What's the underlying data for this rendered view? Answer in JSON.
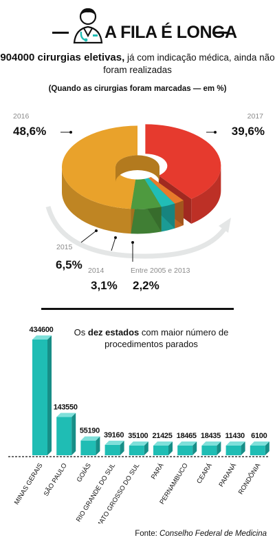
{
  "header": {
    "title": "A FILA É LONGA"
  },
  "lead": {
    "highlight": "904000 cirurgias eletivas,",
    "rest": " já com indicação médica, ainda não foram realizadas"
  },
  "subnote": "(Quando as cirurgias foram marcadas — em %)",
  "colors": {
    "2016": "#E9A22B",
    "2017": "#E63A2E",
    "2015": "#4E9A3F",
    "2014": "#21BDB6",
    "2005_2013": "#E87A2B",
    "bars": "#1FBDB4"
  },
  "chart_data": [
    {
      "type": "pie",
      "slices": [
        {
          "label": "2017",
          "value": 39.6,
          "display": "39,6%"
        },
        {
          "label": "Entre 2005 e 2013",
          "value": 2.2,
          "display": "2,2%"
        },
        {
          "label": "2014",
          "value": 3.1,
          "display": "3,1%"
        },
        {
          "label": "2015",
          "value": 6.5,
          "display": "6,5%"
        },
        {
          "label": "2016",
          "value": 48.6,
          "display": "48,6%"
        }
      ]
    },
    {
      "type": "bar",
      "title": "Os dez estados com maior número de procedimentos parados",
      "categories": [
        "MINAS GERAIS",
        "SÃO PAULO",
        "GOIÁS",
        "RIO GRANDE DO SUL",
        "MATO GROSSO DO SUL",
        "PARÁ",
        "PERNAMBUCO",
        "CEARÁ",
        "PARANÁ",
        "RONDÔNIA"
      ],
      "values": [
        434600,
        143550,
        55190,
        39160,
        35100,
        21425,
        18465,
        18435,
        11430,
        6100
      ],
      "value_labels": [
        "434600",
        "143550",
        "55190",
        "39160",
        "35100",
        "21425",
        "18465",
        "18435",
        "11430",
        "6100"
      ]
    }
  ],
  "states_title": {
    "pre": "Os ",
    "bold": "dez estados",
    "post": " com maior número de procedimentos parados"
  },
  "source": {
    "label": "Fonte: ",
    "value": "Conselho Federal de Medicina"
  }
}
